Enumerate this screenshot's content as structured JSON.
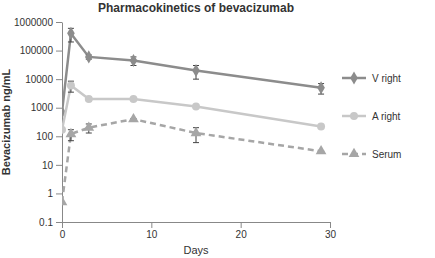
{
  "chart_data": {
    "type": "line",
    "title": "Pharmacokinetics of bevacizumab",
    "x_label": "Days",
    "y_label": "Bevacizumab ng/mL",
    "x": [
      0,
      1,
      3,
      8,
      15,
      29
    ],
    "xlim": [
      0,
      30
    ],
    "xticks": [
      0,
      10,
      20,
      30
    ],
    "ylim": [
      0.1,
      1000000
    ],
    "yticks": [
      0.1,
      1,
      10,
      100,
      1000,
      10000,
      100000,
      1000000
    ],
    "log": "y",
    "grid": false,
    "legend": "right",
    "series": [
      {
        "name": "V right",
        "color": "#8c8c8c",
        "marker": "diamond",
        "line_style": "solid",
        "values": [
          700,
          400000,
          60000,
          45000,
          20000,
          5000
        ],
        "errors": [
          0,
          200000,
          10000,
          15000,
          10000,
          2000
        ]
      },
      {
        "name": "A right",
        "color": "#c8c8c8",
        "marker": "circle",
        "line_style": "solid",
        "values": [
          170,
          6000,
          2000,
          2000,
          1100,
          220
        ],
        "errors": [
          0,
          2500,
          0,
          0,
          0,
          0
        ]
      },
      {
        "name": "Serum",
        "color": "#a6a6a6",
        "marker": "triangle",
        "line_style": "dashed",
        "values": [
          0.5,
          120,
          200,
          400,
          130,
          30
        ],
        "errors": [
          0,
          50,
          70,
          0,
          70,
          0
        ]
      }
    ]
  }
}
